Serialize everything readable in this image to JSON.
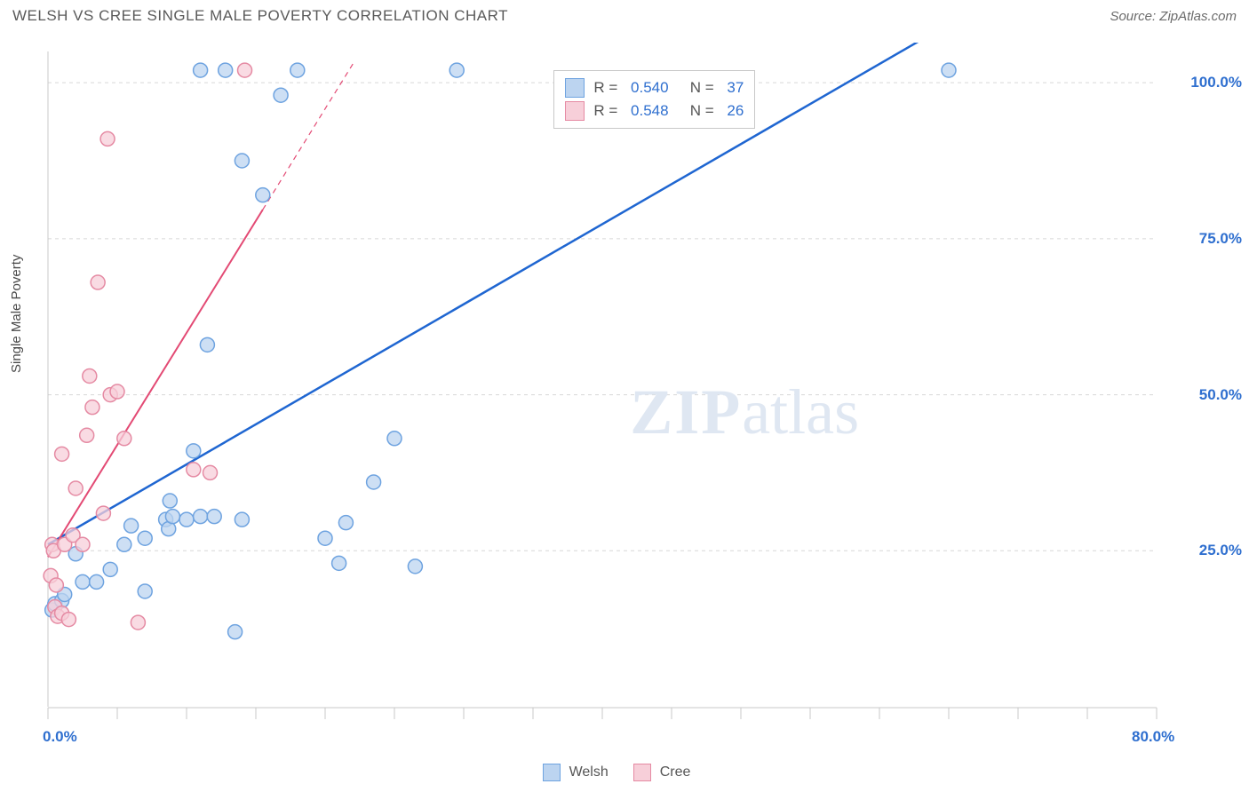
{
  "title": "WELSH VS CREE SINGLE MALE POVERTY CORRELATION CHART",
  "source_label": "Source: ZipAtlas.com",
  "ylabel": "Single Male Poverty",
  "watermark": {
    "zip": "ZIP",
    "atlas": "atlas"
  },
  "chart": {
    "type": "scatter",
    "background_color": "#ffffff",
    "xlim": [
      0,
      80
    ],
    "ylim": [
      0,
      105
    ],
    "x_axis": {
      "tick_start": 0,
      "tick_end": 80,
      "tick_step": 5,
      "labels": [
        {
          "value": 0,
          "text": "0.0%"
        },
        {
          "value": 80,
          "text": "80.0%"
        }
      ],
      "label_color": "#2f6fcf",
      "label_fontsize": 17,
      "tick_color": "#c8c8c8"
    },
    "y_axis": {
      "gridlines": [
        25,
        50,
        75,
        100
      ],
      "gridline_color": "#d7d7d7",
      "gridline_dash": "4,4",
      "labels": [
        {
          "value": 25,
          "text": "25.0%"
        },
        {
          "value": 50,
          "text": "50.0%"
        },
        {
          "value": 75,
          "text": "75.0%"
        },
        {
          "value": 100,
          "text": "100.0%"
        }
      ],
      "label_color": "#2f6fcf",
      "label_fontsize": 17
    },
    "axis_line_color": "#c8c8c8",
    "marker_radius": 8,
    "marker_stroke_width": 1.5,
    "series": [
      {
        "name": "Welsh",
        "color_fill": "#bcd4f0",
        "color_stroke": "#6ea3e0",
        "trendline": {
          "color": "#1f66d1",
          "width": 2.5,
          "dash_solid_until_x": 80,
          "x1": 0,
          "y1": 26,
          "x2": 60,
          "y2": 103
        },
        "points": [
          [
            0.3,
            15.5
          ],
          [
            0.5,
            16.5
          ],
          [
            1.0,
            17
          ],
          [
            1.2,
            18
          ],
          [
            2.5,
            20
          ],
          [
            5.5,
            26
          ],
          [
            6.0,
            29
          ],
          [
            7.0,
            27
          ],
          [
            8.5,
            30
          ],
          [
            8.7,
            28.5
          ],
          [
            8.8,
            33
          ],
          [
            9.0,
            30.5
          ],
          [
            10.0,
            30
          ],
          [
            10.5,
            41
          ],
          [
            11.0,
            30.5
          ],
          [
            12.0,
            30.5
          ],
          [
            13.5,
            12
          ],
          [
            14.0,
            30
          ],
          [
            20.0,
            27
          ],
          [
            21.0,
            23
          ],
          [
            21.5,
            29.5
          ],
          [
            23.5,
            36
          ],
          [
            25.0,
            43
          ],
          [
            26.5,
            22.5
          ],
          [
            29.5,
            102
          ],
          [
            15.5,
            82
          ],
          [
            11.5,
            58
          ],
          [
            16.8,
            98
          ],
          [
            7.0,
            18.5
          ],
          [
            14.0,
            87.5
          ],
          [
            12.8,
            102
          ],
          [
            11.0,
            102
          ],
          [
            18.0,
            102
          ],
          [
            65.0,
            102
          ],
          [
            2.0,
            24.5
          ],
          [
            3.5,
            20
          ],
          [
            4.5,
            22
          ]
        ]
      },
      {
        "name": "Cree",
        "color_fill": "#f7cfd9",
        "color_stroke": "#e58aa3",
        "trendline": {
          "color": "#e34a74",
          "width": 2,
          "dash_solid_until_x": 15.5,
          "x1": 0,
          "y1": 24,
          "x2": 22,
          "y2": 103
        },
        "points": [
          [
            0.2,
            21
          ],
          [
            0.3,
            26
          ],
          [
            0.4,
            25
          ],
          [
            0.5,
            16
          ],
          [
            0.6,
            19.5
          ],
          [
            0.7,
            14.5
          ],
          [
            1.0,
            15
          ],
          [
            1.2,
            26
          ],
          [
            1.5,
            14
          ],
          [
            1.8,
            27.5
          ],
          [
            2.0,
            35
          ],
          [
            2.5,
            26
          ],
          [
            2.8,
            43.5
          ],
          [
            3.0,
            53
          ],
          [
            3.2,
            48
          ],
          [
            3.6,
            68
          ],
          [
            4.0,
            31
          ],
          [
            4.5,
            50
          ],
          [
            5.0,
            50.5
          ],
          [
            5.5,
            43
          ],
          [
            6.5,
            13.5
          ],
          [
            10.5,
            38
          ],
          [
            11.7,
            37.5
          ],
          [
            4.3,
            91
          ],
          [
            14.2,
            102
          ],
          [
            1.0,
            40.5
          ]
        ]
      }
    ],
    "correlation_box": {
      "x_chart": 36.5,
      "y_chart": 102,
      "rows": [
        {
          "swatch_fill": "#bcd4f0",
          "swatch_stroke": "#6ea3e0",
          "r": "0.540",
          "n": "37"
        },
        {
          "swatch_fill": "#f7cfd9",
          "swatch_stroke": "#e58aa3",
          "r": "0.548",
          "n": "26"
        }
      ],
      "text_color_label": "#555555",
      "text_color_value": "#2f6fcf"
    },
    "bottom_legend": [
      {
        "label": "Welsh",
        "swatch_fill": "#bcd4f0",
        "swatch_stroke": "#6ea3e0"
      },
      {
        "label": "Cree",
        "swatch_fill": "#f7cfd9",
        "swatch_stroke": "#e58aa3"
      }
    ],
    "legend_text_color": "#555555"
  }
}
